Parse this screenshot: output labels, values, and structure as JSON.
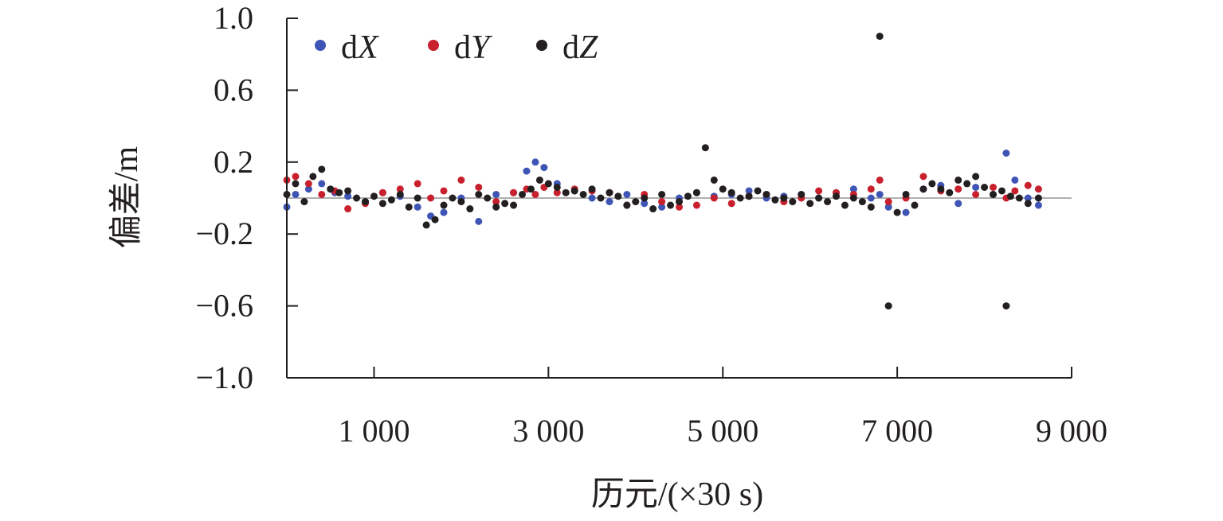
{
  "chart_data": {
    "type": "scatter",
    "title": "",
    "xlabel": "历元/(×30 s)",
    "ylabel": "偏差/m",
    "xlim": [
      0,
      9000
    ],
    "ylim": [
      -1.0,
      1.0
    ],
    "grid": false,
    "legend_position": "top-left",
    "reference_line_y": 0,
    "x_ticks": [
      1000,
      3000,
      5000,
      7000,
      9000
    ],
    "x_tick_labels": [
      "1 000",
      "3 000",
      "5 000",
      "7 000",
      "9 000"
    ],
    "y_ticks": [
      1.0,
      0.6,
      0.2,
      -0.2,
      -0.6,
      -1.0
    ],
    "y_tick_labels": [
      "1.0",
      "0.6",
      "0.2",
      "−0.2",
      "−0.6",
      "−1.0"
    ],
    "colors": {
      "dX": "#3f55b5",
      "dY": "#c8202d",
      "dZ": "#231f20",
      "zero_line": "#b0b0b0",
      "axis": "#231f20"
    },
    "series": [
      {
        "name": "dX",
        "name_base": "d",
        "name_var": "X",
        "color": "#3f55b5",
        "x": [
          0,
          100,
          250,
          400,
          550,
          700,
          900,
          1100,
          1300,
          1500,
          1650,
          1800,
          2000,
          2200,
          2400,
          2600,
          2750,
          2850,
          2950,
          3100,
          3300,
          3500,
          3700,
          3900,
          4100,
          4300,
          4500,
          4700,
          4900,
          5100,
          5300,
          5500,
          5700,
          5900,
          6100,
          6300,
          6500,
          6700,
          6800,
          6900,
          7100,
          7300,
          7500,
          7700,
          7900,
          8100,
          8250,
          8350,
          8500,
          8620
        ],
        "y": [
          -0.05,
          0.02,
          0.05,
          0.08,
          0.03,
          0.01,
          -0.02,
          0.03,
          0.01,
          -0.05,
          -0.1,
          -0.08,
          0.0,
          -0.13,
          0.02,
          0.03,
          0.15,
          0.2,
          0.17,
          0.08,
          0.04,
          0.0,
          -0.02,
          0.02,
          -0.03,
          -0.05,
          0.0,
          0.03,
          0.01,
          0.02,
          0.04,
          0.0,
          0.01,
          0.02,
          0.0,
          0.03,
          0.05,
          0.0,
          0.02,
          -0.05,
          -0.08,
          0.05,
          0.07,
          -0.03,
          0.06,
          0.02,
          0.25,
          0.1,
          0.0,
          -0.04
        ]
      },
      {
        "name": "dY",
        "name_base": "d",
        "name_var": "Y",
        "color": "#c8202d",
        "x": [
          0,
          100,
          250,
          400,
          550,
          700,
          900,
          1100,
          1300,
          1500,
          1650,
          1800,
          2000,
          2200,
          2400,
          2600,
          2750,
          2850,
          2950,
          3100,
          3300,
          3500,
          3700,
          3900,
          4100,
          4300,
          4500,
          4700,
          4900,
          5100,
          5300,
          5500,
          5700,
          5900,
          6100,
          6300,
          6500,
          6700,
          6800,
          6900,
          7100,
          7300,
          7500,
          7700,
          7900,
          8100,
          8250,
          8350,
          8500,
          8620
        ],
        "y": [
          0.1,
          0.12,
          0.08,
          0.02,
          0.04,
          -0.06,
          -0.03,
          0.03,
          0.05,
          0.08,
          0.0,
          0.04,
          0.1,
          0.06,
          -0.02,
          0.03,
          0.05,
          0.02,
          0.06,
          0.03,
          0.05,
          0.04,
          0.03,
          -0.04,
          0.02,
          -0.02,
          -0.05,
          -0.04,
          0.0,
          -0.03,
          0.01,
          0.02,
          -0.02,
          0.0,
          0.04,
          0.03,
          0.02,
          0.05,
          0.1,
          -0.02,
          0.0,
          0.12,
          0.04,
          0.05,
          0.02,
          0.06,
          0.0,
          0.04,
          0.07,
          0.05
        ]
      },
      {
        "name": "dZ",
        "name_base": "d",
        "name_var": "Z",
        "color": "#231f20",
        "x": [
          0,
          100,
          200,
          300,
          400,
          500,
          600,
          700,
          800,
          900,
          1000,
          1100,
          1200,
          1300,
          1400,
          1500,
          1600,
          1700,
          1800,
          1900,
          2000,
          2100,
          2200,
          2300,
          2400,
          2500,
          2600,
          2700,
          2800,
          2900,
          3000,
          3100,
          3200,
          3300,
          3400,
          3500,
          3600,
          3700,
          3800,
          3900,
          4000,
          4100,
          4200,
          4300,
          4400,
          4500,
          4600,
          4700,
          4800,
          4900,
          5000,
          5100,
          5200,
          5300,
          5400,
          5500,
          5600,
          5700,
          5800,
          5900,
          6000,
          6100,
          6200,
          6300,
          6400,
          6500,
          6600,
          6700,
          6800,
          6900,
          7000,
          7100,
          7200,
          7300,
          7400,
          7500,
          7600,
          7700,
          7800,
          7900,
          8000,
          8100,
          8200,
          8250,
          8300,
          8400,
          8500,
          8620
        ],
        "y": [
          0.02,
          0.08,
          -0.02,
          0.12,
          0.16,
          0.05,
          0.03,
          0.04,
          0.0,
          -0.02,
          0.01,
          -0.03,
          -0.01,
          0.02,
          -0.05,
          0.0,
          -0.15,
          -0.12,
          -0.04,
          0.0,
          -0.02,
          -0.06,
          0.02,
          0.0,
          -0.05,
          -0.03,
          -0.04,
          0.02,
          0.05,
          0.1,
          0.08,
          0.06,
          0.03,
          0.04,
          0.02,
          0.05,
          0.0,
          0.03,
          0.01,
          -0.04,
          -0.02,
          0.0,
          -0.06,
          0.02,
          -0.04,
          -0.02,
          0.01,
          0.03,
          0.28,
          0.1,
          0.05,
          0.03,
          0.0,
          0.01,
          0.04,
          0.02,
          -0.01,
          0.0,
          -0.02,
          0.02,
          -0.03,
          0.0,
          -0.02,
          0.01,
          -0.04,
          0.0,
          -0.02,
          -0.05,
          0.9,
          -0.6,
          -0.08,
          0.02,
          -0.04,
          0.05,
          0.08,
          0.05,
          0.03,
          0.1,
          0.08,
          0.12,
          0.06,
          0.02,
          0.04,
          -0.6,
          0.01,
          0.0,
          -0.03,
          0.0
        ]
      }
    ]
  }
}
